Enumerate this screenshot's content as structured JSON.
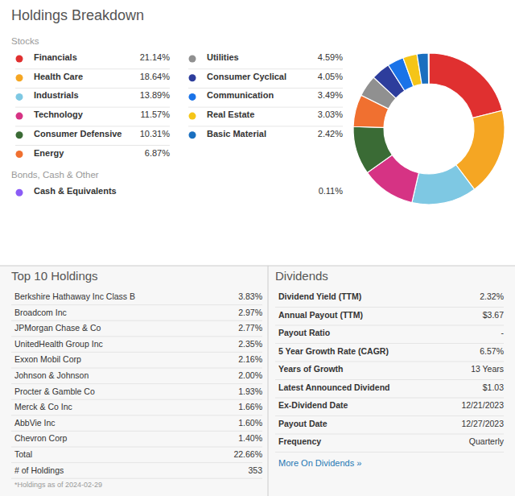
{
  "chart_data": {
    "type": "donut",
    "title": "Holdings Breakdown",
    "series": [
      {
        "name": "Stocks",
        "categories": [
          "Financials",
          "Health Care",
          "Industrials",
          "Technology",
          "Consumer Defensive",
          "Energy",
          "Utilities",
          "Consumer Cyclical",
          "Communication",
          "Real Estate",
          "Basic Material"
        ],
        "values": [
          21.14,
          18.64,
          13.89,
          11.57,
          10.31,
          6.87,
          4.59,
          4.05,
          3.49,
          3.03,
          2.42
        ],
        "value_labels": [
          "21.14%",
          "18.64%",
          "13.89%",
          "11.57%",
          "10.31%",
          "6.87%",
          "4.59%",
          "4.05%",
          "3.49%",
          "3.03%",
          "2.42%"
        ],
        "colors": [
          "#e03030",
          "#f5a623",
          "#7ec8e3",
          "#d63384",
          "#3a6b35",
          "#f07030",
          "#909090",
          "#2d3d9c",
          "#1a73e8",
          "#f5c518",
          "#1a6fbf"
        ]
      },
      {
        "name": "Bonds, Cash & Other",
        "categories": [
          "Cash & Equivalents"
        ],
        "values": [
          0.11
        ],
        "value_labels": [
          "0.11%"
        ],
        "colors": [
          "#8b5cf6"
        ]
      }
    ],
    "tables": [
      {
        "title": "Top 10 Holdings",
        "rows": [
          {
            "label": "Berkshire Hathaway Inc Class B",
            "value": "3.83%"
          },
          {
            "label": "Broadcom Inc",
            "value": "2.97%"
          },
          {
            "label": "JPMorgan Chase & Co",
            "value": "2.77%"
          },
          {
            "label": "UnitedHealth Group Inc",
            "value": "2.35%"
          },
          {
            "label": "Exxon Mobil Corp",
            "value": "2.16%"
          },
          {
            "label": "Johnson & Johnson",
            "value": "2.00%"
          },
          {
            "label": "Procter & Gamble Co",
            "value": "1.93%"
          },
          {
            "label": "Merck & Co Inc",
            "value": "1.66%"
          },
          {
            "label": "AbbVie Inc",
            "value": "1.60%"
          },
          {
            "label": "Chevron Corp",
            "value": "1.40%"
          },
          {
            "label": "Total",
            "value": "22.66%"
          },
          {
            "label": "# of Holdings",
            "value": "353"
          }
        ],
        "footnote": "*Holdings as of 2024-02-29"
      },
      {
        "title": "Dividends",
        "rows": [
          {
            "label": "Dividend Yield (TTM)",
            "value": "2.32%"
          },
          {
            "label": "Annual Payout (TTM)",
            "value": "$3.67"
          },
          {
            "label": "Payout Ratio",
            "value": "-"
          },
          {
            "label": "5 Year Growth Rate (CAGR)",
            "value": "6.57%"
          },
          {
            "label": "Years of Growth",
            "value": "13 Years"
          },
          {
            "label": "Latest Announced Dividend",
            "value": "$1.03"
          },
          {
            "label": "Ex-Dividend Date",
            "value": "12/21/2023"
          },
          {
            "label": "Payout Date",
            "value": "12/27/2023"
          },
          {
            "label": "Frequency",
            "value": "Quarterly"
          }
        ],
        "link": "More On Dividends »"
      }
    ]
  }
}
